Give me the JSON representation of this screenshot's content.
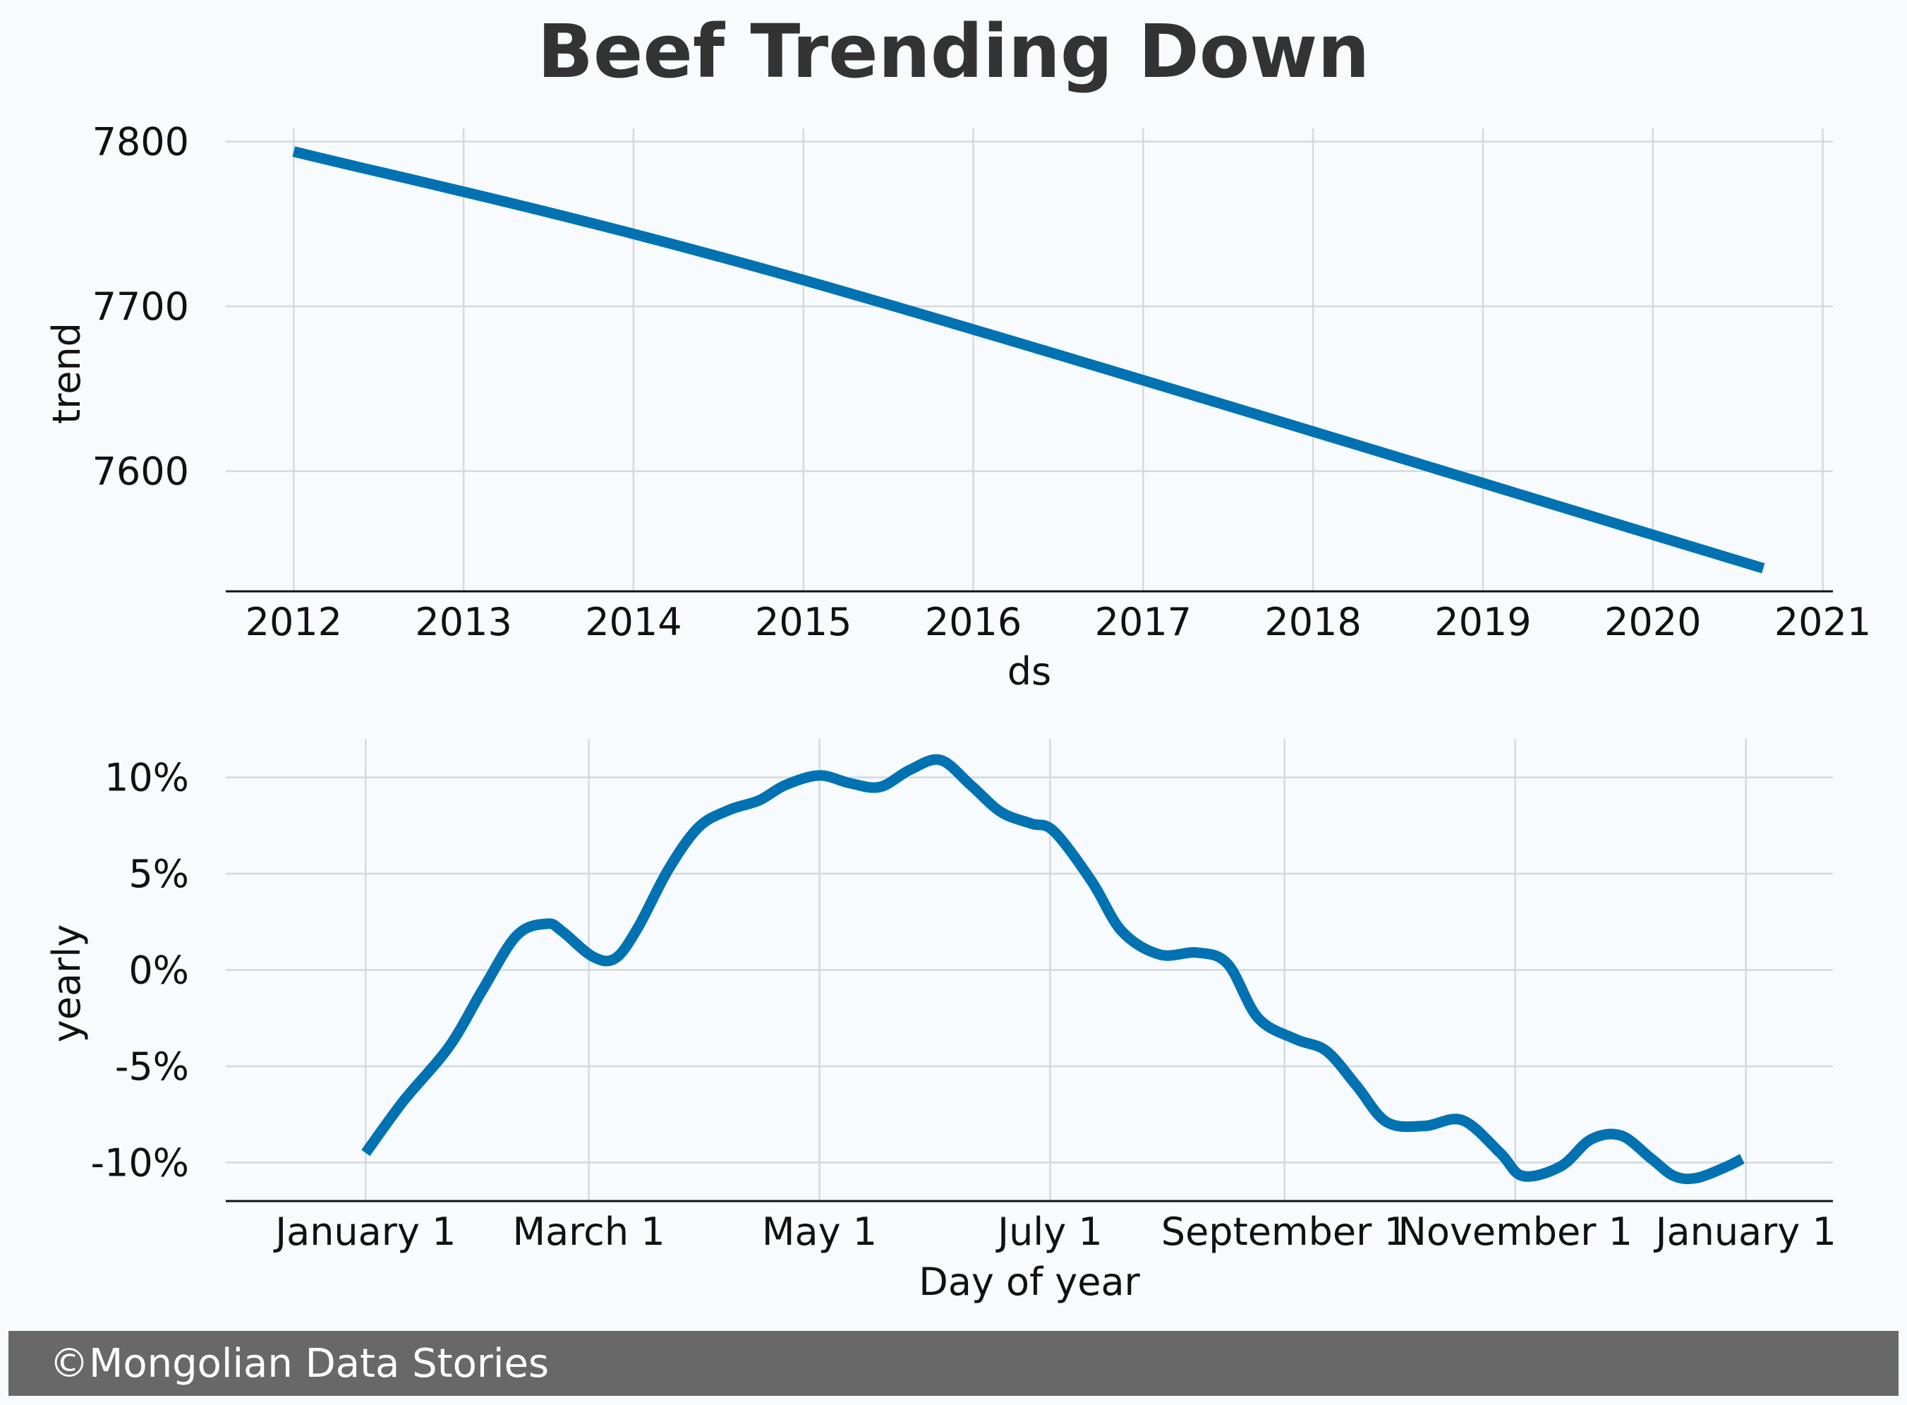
{
  "title": "Beef Trending Down",
  "footer": "©Mongolian Data Stories",
  "colors": {
    "line": "#0072b2",
    "grid": "#d4d9de",
    "background": "#f7fbfe",
    "footer_bg": "#686868"
  },
  "chart_data": [
    {
      "type": "line",
      "xlabel": "ds",
      "ylabel": "trend",
      "x_ticks": [
        "2012",
        "2013",
        "2014",
        "2015",
        "2016",
        "2017",
        "2018",
        "2019",
        "2020",
        "2021"
      ],
      "y_ticks": [
        "7600",
        "7700",
        "7800"
      ],
      "xlim": [
        2011.6,
        2021.06
      ],
      "ylim": [
        7527,
        7808
      ],
      "grid": true,
      "x": [
        2012.0,
        2015.0,
        2020.65
      ],
      "y": [
        7794,
        7716,
        7541
      ]
    },
    {
      "type": "line",
      "xlabel": "Day of year",
      "ylabel": "yearly",
      "x_ticks": [
        "January 1",
        "March 1",
        "May 1",
        "July 1",
        "September 1",
        "November 1",
        "January 1"
      ],
      "y_ticks": [
        "-10%",
        "-5%",
        "0%",
        "5%",
        "10%"
      ],
      "xlim": [
        -37,
        388
      ],
      "ylim": [
        -12,
        12
      ],
      "grid": true,
      "x": [
        0,
        10,
        22,
        31,
        40,
        48,
        52,
        60,
        66,
        72,
        80,
        88,
        96,
        104,
        111,
        120,
        128,
        136,
        144,
        152,
        160,
        168,
        176,
        182,
        192,
        200,
        210,
        220,
        228,
        236,
        246,
        254,
        262,
        270,
        280,
        290,
        300,
        306,
        316,
        324,
        332,
        340,
        346,
        352,
        360,
        364
      ],
      "y": [
        -9.5,
        -6.8,
        -4.0,
        -1.0,
        1.8,
        2.4,
        2.0,
        0.7,
        0.6,
        2.2,
        5.2,
        7.4,
        8.3,
        8.8,
        9.6,
        10.1,
        9.7,
        9.5,
        10.4,
        10.9,
        9.6,
        8.2,
        7.6,
        7.2,
        4.6,
        2.0,
        0.8,
        0.9,
        0.3,
        -2.5,
        -3.6,
        -4.2,
        -6.0,
        -7.9,
        -8.1,
        -7.8,
        -9.5,
        -10.7,
        -10.2,
        -8.8,
        -8.6,
        -9.8,
        -10.7,
        -10.8,
        -10.2,
        -9.8
      ]
    }
  ]
}
